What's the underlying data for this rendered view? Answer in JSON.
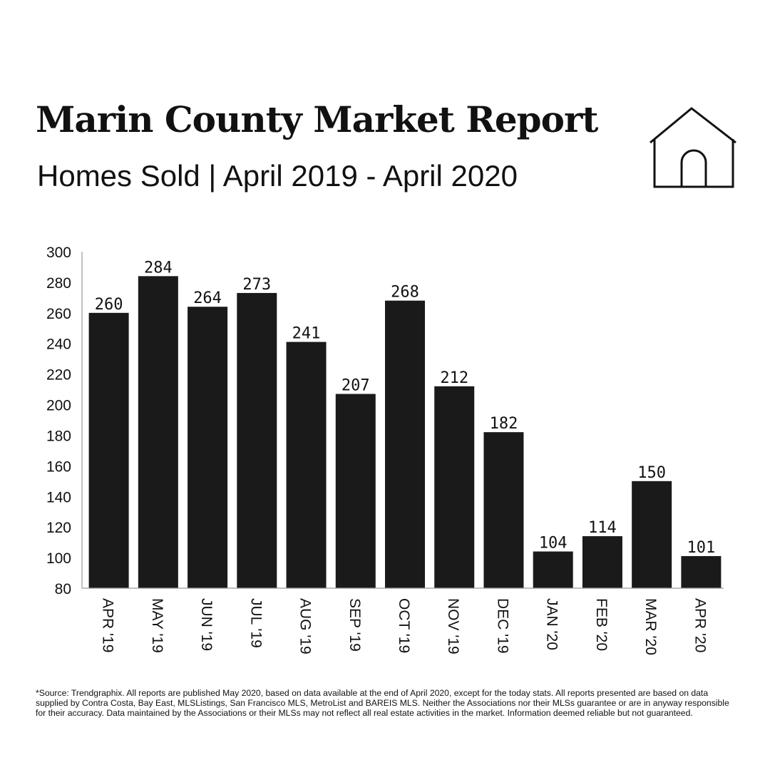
{
  "header": {
    "title": "Marin County Market Report",
    "subtitle": "Homes Sold  |  April 2019 - April 2020",
    "icon": "house-icon"
  },
  "chart_data": {
    "type": "bar",
    "title": "",
    "xlabel": "",
    "ylabel": "",
    "categories": [
      "APR '19",
      "MAY '19",
      "JUN '19",
      "JUL '19",
      "AUG '19",
      "SEP '19",
      "OCT '19",
      "NOV '19",
      "DEC '19",
      "JAN '20",
      "FEB '20",
      "MAR '20",
      "APR '20"
    ],
    "values": [
      260,
      284,
      264,
      273,
      241,
      207,
      268,
      212,
      182,
      104,
      114,
      150,
      101
    ],
    "value_labels": [
      "260",
      "284",
      "264",
      "273",
      "241",
      "207",
      "268",
      "212",
      "182",
      "104",
      "114",
      "150",
      "101"
    ],
    "ylim": [
      80,
      300
    ],
    "yticks": [
      "80",
      "100",
      "120",
      "140",
      "160",
      "180",
      "200",
      "220",
      "240",
      "260",
      "280",
      "300"
    ],
    "bar_color": "#1a1a1a",
    "grid": false,
    "legend": "none"
  },
  "footnote": "*Source: Trendgraphix. All reports are published May 2020, based on data available at the end of April 2020, except for the today stats. All reports presented are based on data supplied by Contra Costa, Bay East, MLSListings, San Francisco MLS, MetroList and BAREIS MLS. Neither the Associations nor their MLSs guarantee or are in anyway responsible for their accuracy. Data maintained by the Associations or their MLSs may not reflect all real estate activities in the market. Information deemed reliable but not guaranteed."
}
